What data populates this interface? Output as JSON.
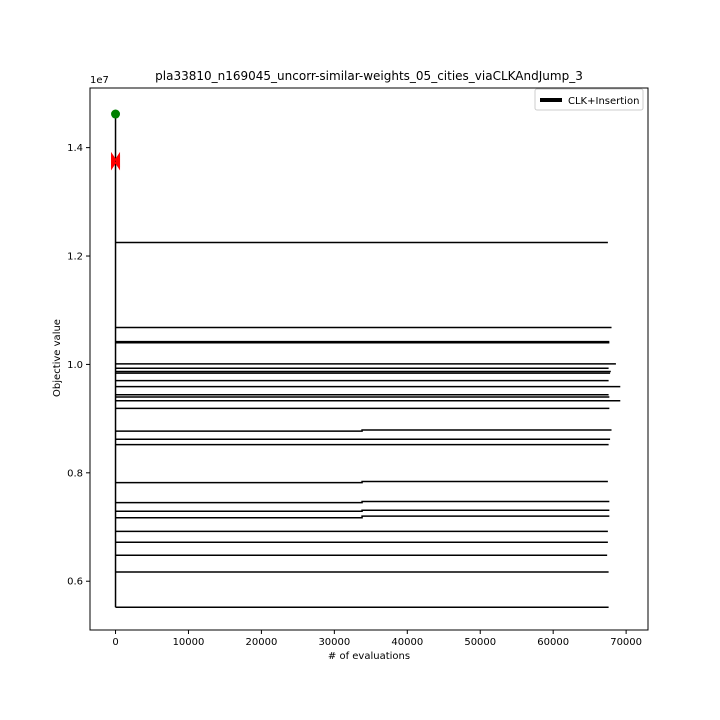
{
  "chart_data": {
    "type": "line",
    "title": "pla33810_n169045_uncorr-similar-weights_05_cities_viaCLKAndJump_3",
    "xlabel": "# of evaluations",
    "ylabel": "Objective value",
    "y_offset_label": "1e7",
    "xlim": [
      -3500,
      73000
    ],
    "ylim": [
      5100000,
      15100000
    ],
    "x_ticks": [
      0,
      10000,
      20000,
      30000,
      40000,
      50000,
      60000,
      70000
    ],
    "x_tick_labels": [
      "0",
      "10000",
      "20000",
      "30000",
      "40000",
      "50000",
      "60000",
      "70000"
    ],
    "y_ticks": [
      6000000,
      8000000,
      10000000,
      12000000,
      14000000
    ],
    "y_tick_labels": [
      "0.6",
      "0.8",
      "1.0",
      "1.2",
      "1.4"
    ],
    "grid": false,
    "legend": {
      "position": "top-right",
      "entries": [
        {
          "label": "CLK+Insertion",
          "color": "#000000"
        }
      ]
    },
    "start_marker": {
      "x": 0,
      "y": 14620000,
      "color": "#008000"
    },
    "end_markers": {
      "x": 0,
      "y": [
        13720000,
        13780000
      ],
      "color": "#ff0000"
    },
    "vertical_segment": {
      "x": 0,
      "y_from": 5520000,
      "y_to": 14620000
    },
    "series": [
      {
        "label": "CLK+Insertion",
        "color": "#000000",
        "runs": [
          {
            "points": [
              [
                0,
                12250000
              ],
              [
                67500,
                12250000
              ]
            ]
          },
          {
            "points": [
              [
                0,
                10680000
              ],
              [
                68000,
                10680000
              ]
            ]
          },
          {
            "points": [
              [
                0,
                10420000
              ],
              [
                67700,
                10420000
              ]
            ]
          },
          {
            "points": [
              [
                0,
                10400000
              ],
              [
                67700,
                10400000
              ]
            ]
          },
          {
            "points": [
              [
                0,
                10010000
              ],
              [
                68600,
                10010000
              ]
            ]
          },
          {
            "points": [
              [
                0,
                9930000
              ],
              [
                67600,
                9930000
              ]
            ]
          },
          {
            "points": [
              [
                0,
                9870000
              ],
              [
                67900,
                9870000
              ]
            ]
          },
          {
            "points": [
              [
                0,
                9840000
              ],
              [
                67800,
                9840000
              ]
            ]
          },
          {
            "points": [
              [
                0,
                9700000
              ],
              [
                67600,
                9700000
              ]
            ]
          },
          {
            "points": [
              [
                0,
                9590000
              ],
              [
                69200,
                9590000
              ]
            ]
          },
          {
            "points": [
              [
                0,
                9440000
              ],
              [
                67600,
                9440000
              ]
            ]
          },
          {
            "points": [
              [
                0,
                9400000
              ],
              [
                67700,
                9400000
              ]
            ]
          },
          {
            "points": [
              [
                0,
                9330000
              ],
              [
                69200,
                9330000
              ]
            ]
          },
          {
            "points": [
              [
                0,
                9190000
              ],
              [
                67700,
                9190000
              ]
            ]
          },
          {
            "points": [
              [
                0,
                8770000
              ],
              [
                33800,
                8770000
              ],
              [
                33800,
                8790000
              ],
              [
                68000,
                8790000
              ]
            ]
          },
          {
            "points": [
              [
                0,
                8620000
              ],
              [
                67800,
                8620000
              ]
            ]
          },
          {
            "points": [
              [
                0,
                8520000
              ],
              [
                67600,
                8520000
              ]
            ]
          },
          {
            "points": [
              [
                0,
                7820000
              ],
              [
                33800,
                7820000
              ],
              [
                33800,
                7840000
              ],
              [
                67500,
                7840000
              ]
            ]
          },
          {
            "points": [
              [
                0,
                7450000
              ],
              [
                33800,
                7450000
              ],
              [
                33800,
                7470000
              ],
              [
                67700,
                7470000
              ]
            ]
          },
          {
            "points": [
              [
                0,
                7290000
              ],
              [
                33800,
                7290000
              ],
              [
                33800,
                7310000
              ],
              [
                67700,
                7310000
              ]
            ]
          },
          {
            "points": [
              [
                0,
                7170000
              ],
              [
                33800,
                7170000
              ],
              [
                33800,
                7200000
              ],
              [
                67700,
                7200000
              ]
            ]
          },
          {
            "points": [
              [
                0,
                6920000
              ],
              [
                67500,
                6920000
              ]
            ]
          },
          {
            "points": [
              [
                0,
                6720000
              ],
              [
                67500,
                6720000
              ]
            ]
          },
          {
            "points": [
              [
                0,
                6480000
              ],
              [
                67400,
                6480000
              ]
            ]
          },
          {
            "points": [
              [
                0,
                6170000
              ],
              [
                67600,
                6170000
              ]
            ]
          },
          {
            "points": [
              [
                0,
                5520000
              ],
              [
                67600,
                5520000
              ]
            ]
          }
        ]
      }
    ]
  }
}
